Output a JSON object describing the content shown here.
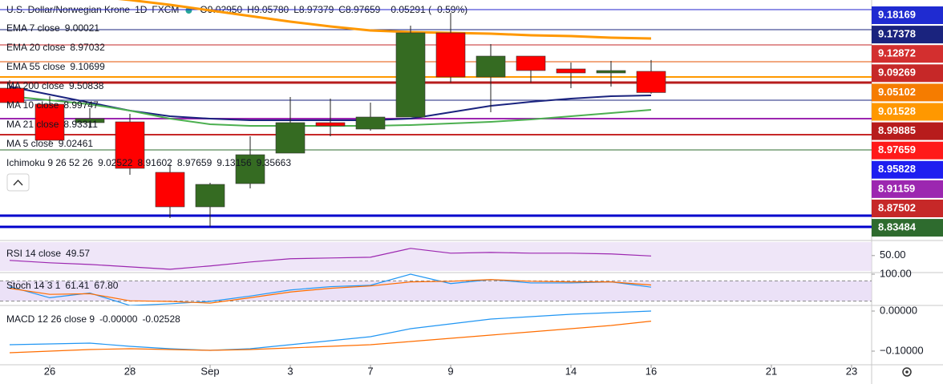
{
  "header": {
    "title": "U.S. Dollar/Norwegian Krone",
    "interval": "1D",
    "source": "FXCM",
    "ohlc": [
      {
        "key": "O",
        "value": "9.02950"
      },
      {
        "key": "H",
        "value": "9.05780"
      },
      {
        "key": "L",
        "value": "8.97379"
      },
      {
        "key": "C",
        "value": "8.97659"
      }
    ],
    "change": "−0.05291 (−0.59%)"
  },
  "chart_data": [
    {
      "type": "candlestick",
      "categories": [
        null,
        "26",
        null,
        "28",
        null,
        "Sep",
        null,
        "3",
        null,
        "7",
        null,
        "9",
        null,
        null,
        "14",
        null,
        "16",
        null,
        null,
        "21",
        null,
        "23"
      ],
      "open": [
        8.9875,
        8.9475,
        8.9015,
        8.9035,
        8.7775,
        8.6915,
        8.7495,
        8.8255,
        8.9015,
        8.8855,
        8.9155,
        9.1255,
        9.0155,
        9.0675,
        9.0355,
        9.0255,
        9.0295,
        null,
        null,
        null,
        null,
        null
      ],
      "high": [
        9.0075,
        8.9675,
        8.9375,
        8.9235,
        8.7975,
        8.7515,
        8.8675,
        8.9655,
        8.9615,
        8.9515,
        9.1435,
        9.1755,
        9.0975,
        9.0675,
        9.0515,
        9.0555,
        9.0578,
        null,
        null,
        null,
        null,
        null
      ],
      "low": [
        8.9475,
        8.8515,
        8.8875,
        8.7715,
        8.6635,
        8.6415,
        8.7375,
        8.8255,
        8.8675,
        8.8815,
        8.9155,
        9.0015,
        8.9275,
        9.0015,
        8.9875,
        8.9915,
        8.97379,
        null,
        null,
        null,
        null,
        null
      ],
      "close": [
        8.9515,
        8.8575,
        8.9115,
        8.7875,
        8.6915,
        8.7475,
        8.8215,
        8.9015,
        8.8935,
        8.9155,
        9.1255,
        9.0155,
        9.0675,
        9.0315,
        9.0255,
        9.0315,
        8.97659,
        null,
        null,
        null,
        null,
        null
      ],
      "up_color": "#356b22",
      "down_color": "#ff0000",
      "ylim": [
        8.6115,
        9.1915
      ],
      "hlines": [
        {
          "value": 9.1835,
          "color": "#2222cc",
          "width": 1
        },
        {
          "value": 9.1335,
          "color": "#1a237e",
          "width": 1
        },
        {
          "value": 9.0955,
          "color": "#c62828",
          "width": 1
        },
        {
          "value": 9.0535,
          "color": "#e65100",
          "width": 1
        },
        {
          "value": 9.0155,
          "color": "#ff9800",
          "width": 2
        },
        {
          "value": 9.0015,
          "color": "#b71c1c",
          "width": 3
        },
        {
          "value": 8.9575,
          "color": "#1a237e",
          "width": 1
        },
        {
          "value": 8.9115,
          "color": "#9c27b0",
          "width": 2
        },
        {
          "value": 8.8715,
          "color": "#c62828",
          "width": 2
        },
        {
          "value": 8.8335,
          "color": "#2e6b2e",
          "width": 1
        },
        {
          "value": 8.6695,
          "color": "#0000cc",
          "width": 3
        },
        {
          "value": 8.6415,
          "color": "#0000cc",
          "width": 3
        }
      ],
      "legend": [
        {
          "name": "EMA 7 close",
          "value": "9.00021",
          "color": "#5c6bc0"
        },
        {
          "name": "EMA 20 close",
          "value": "8.97032",
          "color": "#3f51b5"
        },
        {
          "name": "EMA 55 close",
          "value": "9.10699",
          "color": "#ff9800",
          "line": [
            9.2315,
            9.2235,
            9.2175,
            9.2075,
            9.1955,
            9.1815,
            9.1675,
            9.1535,
            9.1415,
            9.1315,
            9.1275,
            9.1255,
            9.1235,
            9.1195,
            9.1175,
            9.1135,
            9.1115,
            null,
            null,
            null,
            null,
            null
          ]
        },
        {
          "name": "MA 200 close",
          "value": "9.50838",
          "color": "#c62828"
        },
        {
          "name": "MA 10 close",
          "value": "8.99747",
          "color": "#1a237e",
          "line": [
            8.9915,
            8.9715,
            8.9515,
            8.9315,
            8.9175,
            8.9115,
            8.9075,
            8.9075,
            8.9075,
            8.9075,
            8.9115,
            8.9275,
            8.9435,
            8.9535,
            8.9615,
            8.9675,
            8.9695,
            null,
            null,
            null,
            null,
            null
          ]
        },
        {
          "name": "MA 21 close",
          "value": "8.93311",
          "color": "#4caf50",
          "line": [
            8.9675,
            8.9575,
            8.9475,
            8.9315,
            8.9115,
            8.8975,
            8.8935,
            8.8935,
            8.8935,
            8.8935,
            8.8955,
            8.8995,
            8.9035,
            8.9095,
            8.9175,
            8.9255,
            8.9335,
            null,
            null,
            null,
            null,
            null
          ]
        },
        {
          "name": "MA 5 close",
          "value": "9.02461",
          "color": "#512da8"
        }
      ],
      "ichimoku": {
        "name": "Ichimoku 9 26 52 26",
        "values": [
          {
            "value": "9.02522",
            "color": "#2196f3"
          },
          {
            "value": "8.91602",
            "color": "#8b0000"
          },
          {
            "value": "8.97659",
            "color": "#388e3c"
          },
          {
            "value": "9.13156",
            "color": "#4caf50"
          },
          {
            "value": "9.35663",
            "color": "#e53935"
          }
        ]
      },
      "price_tags": [
        {
          "value": 9.18169,
          "color": "#1f2bd1"
        },
        {
          "value": 9.17378,
          "color": "#1a237e"
        },
        {
          "value": 9.12872,
          "color": "#d32f2f"
        },
        {
          "value": 9.09269,
          "color": "#c62828"
        },
        {
          "value": 9.05102,
          "color": "#f57c00"
        },
        {
          "value": 9.01528,
          "color": "#ff9800"
        },
        {
          "value": 8.99885,
          "color": "#b71c1c"
        },
        {
          "value": 8.97659,
          "color": "#ff1a1a"
        },
        {
          "value": 8.95828,
          "color": "#1e1ef0"
        },
        {
          "value": 8.91159,
          "color": "#9c27b0"
        },
        {
          "value": 8.87502,
          "color": "#c62828"
        },
        {
          "value": 8.83484,
          "color": "#2e6b2e"
        }
      ]
    },
    {
      "type": "line",
      "title": "RSI 14 close",
      "ylim": [
        34,
        64
      ],
      "yticks": [
        {
          "value": 50,
          "label": "50.00"
        }
      ],
      "band_color": "#e8dcf5",
      "series": [
        {
          "value_label": "49.57",
          "color": "#9c27b0",
          "values": [
            45.0,
            42.5,
            40.8,
            38.3,
            35.8,
            39.2,
            43.3,
            46.7,
            47.5,
            48.3,
            57.5,
            52.5,
            53.3,
            52.5,
            52.5,
            51.7,
            49.57,
            null,
            null,
            null,
            null,
            null
          ]
        }
      ]
    },
    {
      "type": "line",
      "title": "Stoch 14 3 1",
      "ylim": [
        0,
        100
      ],
      "yticks": [
        {
          "value": 100,
          "label": "100.00"
        }
      ],
      "bands": [
        80,
        20
      ],
      "band_color": "#e3d4f3",
      "series": [
        {
          "value_label": "61.41",
          "color": "#2196f3",
          "values": [
            63,
            30,
            44,
            7,
            12,
            19,
            35,
            53,
            63,
            67,
            100,
            72,
            84,
            74,
            74,
            77,
            61.41,
            null,
            null,
            null,
            null,
            null
          ]
        },
        {
          "value_label": "67.80",
          "color": "#ff6d00",
          "values": [
            58,
            40,
            42,
            21,
            19,
            14,
            30,
            47,
            58,
            65,
            77,
            79,
            84,
            79,
            77,
            77,
            67.8,
            null,
            null,
            null,
            null,
            null
          ]
        }
      ]
    },
    {
      "type": "line",
      "title": "MACD 12 26 close 9",
      "ylim": [
        -0.134,
        0.008
      ],
      "yticks": [
        {
          "value": 0,
          "label": "0.00000"
        },
        {
          "value": -0.1,
          "label": "−0.10000"
        }
      ],
      "series": [
        {
          "value_label": "-0.00000",
          "color": "#2196f3",
          "values": [
            -0.084,
            -0.082,
            -0.08,
            -0.088,
            -0.094,
            -0.098,
            -0.094,
            -0.084,
            -0.074,
            -0.064,
            -0.044,
            -0.032,
            -0.02,
            -0.014,
            -0.008,
            -0.004,
            -2e-06,
            null,
            null,
            null,
            null,
            null
          ]
        },
        {
          "value_label": "-0.02528",
          "color": "#ff6d00",
          "values": [
            -0.104,
            -0.1,
            -0.096,
            -0.094,
            -0.096,
            -0.098,
            -0.096,
            -0.092,
            -0.088,
            -0.084,
            -0.076,
            -0.068,
            -0.06,
            -0.052,
            -0.044,
            -0.036,
            -0.02528,
            null,
            null,
            null,
            null,
            null
          ]
        }
      ]
    }
  ]
}
